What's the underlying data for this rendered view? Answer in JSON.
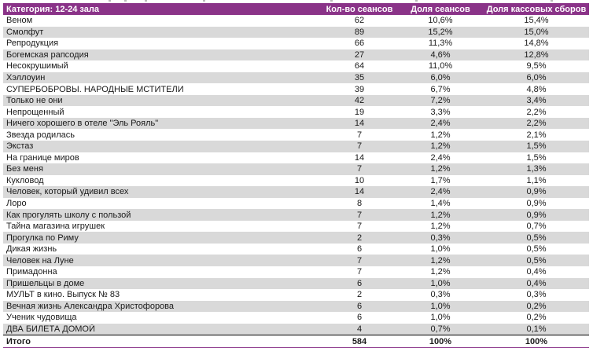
{
  "chart_data": {
    "type": "table",
    "header": {
      "category": "Категория: 12-24 зала",
      "columns": [
        "Кол-во сеансов",
        "Доля сеансов",
        "Доля кассовых сборов"
      ]
    },
    "rows": [
      [
        "Веном",
        "62",
        "10,6%",
        "15,4%"
      ],
      [
        "Смолфут",
        "89",
        "15,2%",
        "15,0%"
      ],
      [
        "Репродукция",
        "66",
        "11,3%",
        "14,8%"
      ],
      [
        "Богемская рапсодия",
        "27",
        "4,6%",
        "12,8%"
      ],
      [
        "Несокрушимый",
        "64",
        "11,0%",
        "9,5%"
      ],
      [
        "Хэллоуин",
        "35",
        "6,0%",
        "6,0%"
      ],
      [
        "СУПЕРБОБРОВЫ. НАРОДНЫЕ МСТИТЕЛИ",
        "39",
        "6,7%",
        "4,8%"
      ],
      [
        "Только не они",
        "42",
        "7,2%",
        "3,4%"
      ],
      [
        "Непрощенный",
        "19",
        "3,3%",
        "2,2%"
      ],
      [
        "Ничего хорошего в отеле \"Эль Рояль\"",
        "14",
        "2,4%",
        "2,2%"
      ],
      [
        "Звезда родилась",
        "7",
        "1,2%",
        "2,1%"
      ],
      [
        "Экстаз",
        "7",
        "1,2%",
        "1,5%"
      ],
      [
        "На границе миров",
        "14",
        "2,4%",
        "1,5%"
      ],
      [
        "Без меня",
        "7",
        "1,2%",
        "1,3%"
      ],
      [
        "Кукловод",
        "10",
        "1,7%",
        "1,1%"
      ],
      [
        "Человек, который удивил всех",
        "14",
        "2,4%",
        "0,9%"
      ],
      [
        "Лоро",
        "8",
        "1,4%",
        "0,9%"
      ],
      [
        "Как прогулять школу с пользой",
        "7",
        "1,2%",
        "0,9%"
      ],
      [
        "Тайна магазина игрушек",
        "7",
        "1,2%",
        "0,7%"
      ],
      [
        "Прогулка по Риму",
        "2",
        "0,3%",
        "0,5%"
      ],
      [
        "Дикая жизнь",
        "6",
        "1,0%",
        "0,5%"
      ],
      [
        "Человек на Луне",
        "7",
        "1,2%",
        "0,5%"
      ],
      [
        "Примадонна",
        "7",
        "1,2%",
        "0,4%"
      ],
      [
        "Пришельцы в доме",
        "6",
        "1,0%",
        "0,4%"
      ],
      [
        "МУЛЬТ в кино. Выпуск № 83",
        "2",
        "0,3%",
        "0,3%"
      ],
      [
        "Вечная жизнь Александра Христофорова",
        "6",
        "1,0%",
        "0,2%"
      ],
      [
        "Ученик чудовища",
        "6",
        "1,0%",
        "0,2%"
      ],
      [
        "ДВА БИЛЕТА ДОМОЙ",
        "4",
        "0,7%",
        "0,1%"
      ]
    ],
    "total": [
      "Итого",
      "584",
      "100%",
      "100%"
    ],
    "layout": {
      "striped": true,
      "stripe_color": "#D9D9D9",
      "header_bg": "#8A3388",
      "header_text": "#FFFFFF",
      "total_top_border": "#000000",
      "bottom_rule": "#8A3388"
    }
  }
}
